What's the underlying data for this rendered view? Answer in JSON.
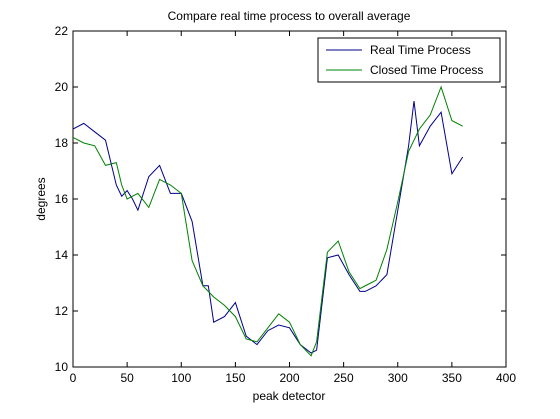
{
  "chart_data": {
    "type": "line",
    "title": "Compare real time process to overall average",
    "xlabel": "peak detector",
    "ylabel": "degrees",
    "xlim": [
      0,
      400
    ],
    "ylim": [
      10,
      22
    ],
    "xticks": [
      0,
      50,
      100,
      150,
      200,
      250,
      300,
      350,
      400
    ],
    "yticks": [
      10,
      12,
      14,
      16,
      18,
      20,
      22
    ],
    "grid": false,
    "legend_position": "top-right",
    "series": [
      {
        "name": "Real Time Process",
        "color": "#00008b",
        "x": [
          0,
          10,
          20,
          30,
          40,
          45,
          50,
          55,
          60,
          70,
          80,
          90,
          100,
          110,
          120,
          125,
          130,
          140,
          150,
          160,
          170,
          180,
          190,
          200,
          210,
          220,
          225,
          235,
          245,
          255,
          265,
          270,
          280,
          290,
          300,
          310,
          315,
          320,
          330,
          340,
          350,
          360
        ],
        "y": [
          18.5,
          18.7,
          18.4,
          18.1,
          16.5,
          16.1,
          16.3,
          16.0,
          15.6,
          16.8,
          17.2,
          16.2,
          16.2,
          15.2,
          12.9,
          12.9,
          11.6,
          11.8,
          12.3,
          11.1,
          10.8,
          11.3,
          11.5,
          11.4,
          10.8,
          10.5,
          10.6,
          13.9,
          14.0,
          13.3,
          12.7,
          12.7,
          12.9,
          13.3,
          15.6,
          17.9,
          19.5,
          17.9,
          18.6,
          19.1,
          16.9,
          17.5
        ]
      },
      {
        "name": "Closed Time Process",
        "color": "#008000",
        "x": [
          0,
          10,
          20,
          30,
          40,
          45,
          50,
          60,
          70,
          80,
          90,
          100,
          110,
          120,
          130,
          140,
          150,
          160,
          170,
          180,
          190,
          200,
          210,
          220,
          225,
          235,
          245,
          255,
          265,
          275,
          280,
          290,
          300,
          310,
          320,
          330,
          340,
          350,
          360
        ],
        "y": [
          18.2,
          18.0,
          17.9,
          17.2,
          17.3,
          16.5,
          16.0,
          16.2,
          15.7,
          16.7,
          16.5,
          16.2,
          13.8,
          12.9,
          12.5,
          12.2,
          11.8,
          11.0,
          10.9,
          11.4,
          11.9,
          11.6,
          10.8,
          10.4,
          10.9,
          14.1,
          14.5,
          13.4,
          12.8,
          13.0,
          13.1,
          14.2,
          15.9,
          17.7,
          18.5,
          19.0,
          20.0,
          18.8,
          18.6
        ]
      }
    ]
  }
}
